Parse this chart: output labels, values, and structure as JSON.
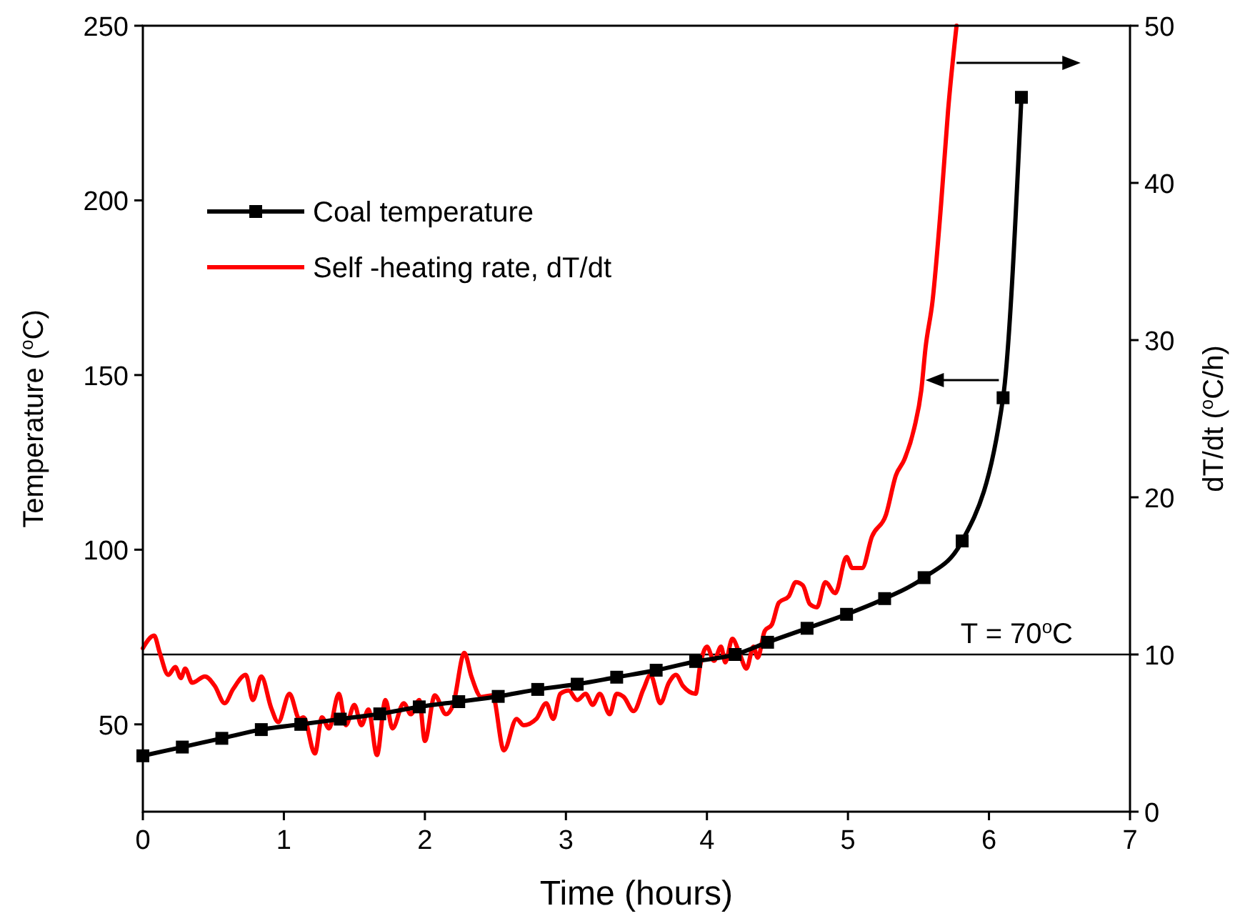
{
  "chart_data": {
    "type": "line",
    "xlabel": "Time (hours)",
    "ylabel": "Temperature ($^{o}$C)",
    "y2label": "dT/dt ($^{o}$C/h)",
    "xlim": [
      0,
      7
    ],
    "xticks": [
      0,
      1,
      2,
      3,
      4,
      5,
      6,
      7
    ],
    "ylim": [
      25,
      250
    ],
    "yticks": [
      50,
      100,
      150,
      200,
      250
    ],
    "y2lim": [
      0,
      50
    ],
    "y2ticks": [
      0,
      10,
      20,
      30,
      40,
      50
    ],
    "grid": false,
    "legend": "top left",
    "ref_lines": [
      {
        "axis": "y",
        "value": 70,
        "label": "T = 70$^{o}$C",
        "color": "#000000"
      }
    ],
    "series": [
      {
        "name": "Coal temperature",
        "color": "#000000",
        "marker": "square",
        "x": [
          0,
          0.28,
          0.56,
          0.84,
          1.12,
          1.4,
          1.68,
          1.96,
          2.24,
          2.52,
          2.8,
          3.08,
          3.36,
          3.64,
          3.92,
          4.2,
          4.43,
          4.71,
          4.99,
          5.26,
          5.54,
          5.81,
          6.1,
          6.23
        ],
        "values": [
          41,
          43.5,
          46,
          48.5,
          50,
          51.5,
          53,
          55,
          56.5,
          58,
          60,
          61.5,
          63.5,
          65.5,
          68,
          70,
          73.5,
          77.5,
          81.5,
          86,
          92,
          102.5,
          143.5,
          229.5
        ]
      },
      {
        "name": "Self -heating rate, dT/dt",
        "color": "#ff0000",
        "marker": "none",
        "axis": "y2",
        "x": [
          0,
          0.08,
          0.12,
          0.18,
          0.23,
          0.27,
          0.3,
          0.35,
          0.44,
          0.51,
          0.58,
          0.64,
          0.73,
          0.78,
          0.84,
          0.91,
          0.96,
          1.04,
          1.11,
          1.14,
          1.22,
          1.27,
          1.32,
          1.39,
          1.44,
          1.5,
          1.55,
          1.6,
          1.66,
          1.72,
          1.77,
          1.85,
          1.9,
          1.96,
          2.0,
          2.07,
          2.15,
          2.2,
          2.28,
          2.33,
          2.4,
          2.48,
          2.56,
          2.65,
          2.7,
          2.79,
          2.86,
          2.91,
          2.96,
          3.02,
          3.08,
          3.14,
          3.19,
          3.24,
          3.31,
          3.36,
          3.41,
          3.48,
          3.55,
          3.6,
          3.67,
          3.73,
          3.78,
          3.83,
          3.92,
          3.95,
          4.0,
          4.05,
          4.1,
          4.13,
          4.18,
          4.23,
          4.28,
          4.33,
          4.36,
          4.41,
          4.46,
          4.51,
          4.58,
          4.63,
          4.68,
          4.73,
          4.78,
          4.84,
          4.91,
          4.99,
          5.03,
          5.1,
          5.17,
          5.27,
          5.34,
          5.4,
          5.47,
          5.52,
          5.55,
          5.6,
          5.66,
          5.71,
          5.77
        ],
        "values": [
          10.4,
          11.2,
          10.1,
          8.7,
          9.2,
          8.5,
          9.1,
          8.2,
          8.6,
          8.0,
          6.9,
          7.8,
          8.7,
          7.1,
          8.6,
          6.6,
          5.7,
          7.5,
          5.9,
          6.0,
          3.7,
          6.0,
          5.3,
          7.5,
          5.5,
          6.8,
          5.5,
          6.5,
          3.6,
          7.1,
          5.3,
          6.9,
          6.2,
          7.1,
          4.5,
          7.4,
          6.2,
          6.8,
          10.1,
          8.6,
          7.3,
          7.4,
          3.9,
          5.9,
          5.5,
          5.9,
          6.9,
          5.9,
          7.5,
          7.7,
          7.1,
          7.5,
          6.8,
          7.5,
          6.2,
          7.5,
          7.3,
          6.4,
          7.8,
          8.7,
          6.9,
          8.2,
          8.7,
          8.0,
          7.5,
          9.2,
          10.5,
          9.6,
          10.5,
          9.5,
          11.0,
          10.1,
          9.1,
          10.5,
          9.8,
          11.5,
          11.9,
          13.3,
          13.7,
          14.6,
          14.4,
          13.2,
          13.0,
          14.6,
          13.9,
          16.2,
          15.5,
          15.5,
          17.5,
          18.9,
          21.4,
          22.4,
          24.4,
          26.8,
          29.5,
          32.5,
          38.6,
          44.6,
          50
        ]
      }
    ]
  }
}
